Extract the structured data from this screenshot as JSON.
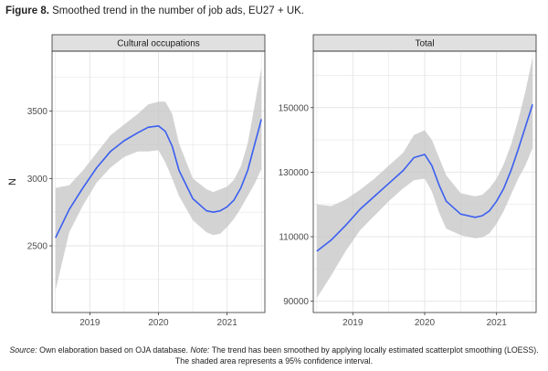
{
  "figure": {
    "label": "Figure 8.",
    "title": "Smoothed trend in the number of job ads, EU27 + UK."
  },
  "source": {
    "source_label": "Source:",
    "source_text": " Own elaboration based on OJA database. ",
    "note_label": "Note:",
    "note_text": " The trend has been smoothed by applying locally estimated scatterplot smoothing (LOESS). The shaded area represents a 95% confidence interval."
  },
  "colors": {
    "line": "#3a5ff0",
    "ribbon": "#c4c4c4",
    "strip": "#e0e0e0",
    "grid": "#e6e6e6"
  },
  "chart_data": [
    {
      "type": "line",
      "title": "Cultural occupations",
      "ylabel": "N",
      "xlabel": "",
      "x_ticks": [
        "2019",
        "2020",
        "2021"
      ],
      "y_ticks": [
        2500,
        3000,
        3500
      ],
      "xlim": [
        2018.45,
        2021.55
      ],
      "ylim": [
        2005,
        3945
      ],
      "grid": true,
      "series": [
        {
          "x": [
            2018.5,
            2018.7,
            2018.9,
            2019.1,
            2019.3,
            2019.5,
            2019.7,
            2019.85,
            2020.0,
            2020.1,
            2020.2,
            2020.3,
            2020.5,
            2020.7,
            2020.8,
            2020.9,
            2021.0,
            2021.1,
            2021.2,
            2021.3,
            2021.4,
            2021.5
          ],
          "y": [
            2560,
            2770,
            2930,
            3080,
            3200,
            3280,
            3340,
            3380,
            3390,
            3350,
            3240,
            3060,
            2850,
            2760,
            2750,
            2760,
            2790,
            2840,
            2930,
            3060,
            3250,
            3440
          ],
          "ci_lower": [
            2170,
            2600,
            2800,
            2970,
            3080,
            3160,
            3200,
            3200,
            3210,
            3120,
            3000,
            2870,
            2690,
            2600,
            2580,
            2590,
            2640,
            2700,
            2780,
            2870,
            2960,
            3070
          ],
          "ci_upper": [
            2930,
            2950,
            3060,
            3190,
            3320,
            3400,
            3480,
            3550,
            3570,
            3570,
            3480,
            3260,
            3000,
            2920,
            2900,
            2920,
            2940,
            2990,
            3090,
            3260,
            3540,
            3820
          ]
        }
      ]
    },
    {
      "type": "line",
      "title": "Total",
      "ylabel": "",
      "xlabel": "",
      "x_ticks": [
        "2019",
        "2020",
        "2021"
      ],
      "y_ticks": [
        90000,
        110000,
        130000,
        150000
      ],
      "xlim": [
        2018.45,
        2021.55
      ],
      "ylim": [
        86500,
        167500
      ],
      "grid": true,
      "series": [
        {
          "x": [
            2018.5,
            2018.7,
            2018.9,
            2019.1,
            2019.3,
            2019.5,
            2019.7,
            2019.85,
            2020.0,
            2020.1,
            2020.2,
            2020.3,
            2020.5,
            2020.7,
            2020.8,
            2020.9,
            2021.0,
            2021.1,
            2021.2,
            2021.3,
            2021.4,
            2021.5
          ],
          "y": [
            105500,
            109000,
            113500,
            118500,
            122500,
            126500,
            130500,
            134500,
            135500,
            132000,
            126000,
            121000,
            117000,
            116000,
            116500,
            118000,
            121000,
            125000,
            130500,
            137000,
            144000,
            151000
          ],
          "ci_lower": [
            91000,
            98000,
            105500,
            112000,
            116500,
            121000,
            125000,
            127500,
            128000,
            124000,
            117500,
            112500,
            110500,
            109500,
            109800,
            111000,
            114000,
            118000,
            123000,
            128000,
            132000,
            137500
          ],
          "ci_upper": [
            120000,
            119500,
            121500,
            124500,
            128000,
            132000,
            136000,
            141500,
            143000,
            140000,
            134500,
            129000,
            123500,
            122500,
            123000,
            125000,
            128000,
            132500,
            138500,
            146000,
            155000,
            165500
          ]
        }
      ]
    }
  ]
}
